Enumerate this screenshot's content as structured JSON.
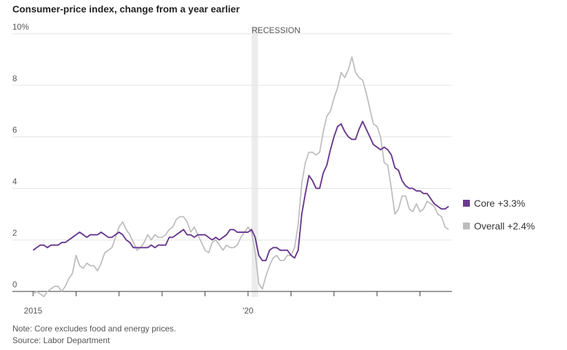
{
  "chart_data": {
    "type": "line",
    "title": "Consumer-price index, change from a year earlier",
    "recession_label": "RECESSION",
    "note": "Note: Core excludes food and energy prices.",
    "source": "Source: Labor Department",
    "categories": [
      "2015",
      null,
      null,
      null,
      null,
      null,
      null,
      null,
      null,
      null,
      null,
      null,
      null,
      null,
      null,
      null,
      null,
      null,
      null,
      null,
      null,
      null,
      null,
      null,
      null,
      null,
      null,
      null,
      null,
      null,
      null,
      null,
      null,
      null,
      null,
      null,
      null,
      null,
      null,
      null,
      null,
      null,
      null,
      null,
      null,
      null,
      null,
      null,
      null,
      null,
      null,
      null,
      null,
      null,
      null,
      null,
      null,
      null,
      null,
      null,
      "'20",
      null,
      null,
      null,
      null,
      null,
      null,
      null,
      null,
      null,
      null,
      null,
      null,
      null,
      null,
      null,
      null,
      null,
      null,
      null,
      null,
      null,
      null,
      null,
      null,
      null,
      null,
      null,
      null,
      null,
      null,
      null,
      null,
      null,
      null,
      null,
      null,
      null,
      null,
      null,
      null,
      null,
      null,
      null,
      null,
      null,
      null,
      null,
      null,
      null,
      null,
      null,
      null,
      null,
      null,
      null,
      null
    ],
    "series": [
      {
        "name": "Core +3.3%",
        "color": "#6b3a8f",
        "values": [
          1.6,
          1.7,
          1.8,
          1.8,
          1.7,
          1.8,
          1.8,
          1.8,
          1.9,
          1.9,
          2.0,
          2.1,
          2.2,
          2.3,
          2.2,
          2.1,
          2.2,
          2.2,
          2.2,
          2.3,
          2.2,
          2.1,
          2.1,
          2.2,
          2.3,
          2.2,
          2.0,
          1.9,
          1.7,
          1.7,
          1.7,
          1.7,
          1.7,
          1.8,
          1.7,
          1.8,
          1.8,
          1.8,
          2.1,
          2.1,
          2.2,
          2.3,
          2.4,
          2.2,
          2.2,
          2.1,
          2.2,
          2.2,
          2.2,
          2.1,
          2.0,
          2.1,
          2.0,
          2.1,
          2.2,
          2.4,
          2.4,
          2.3,
          2.3,
          2.3,
          2.3,
          2.4,
          2.1,
          1.4,
          1.2,
          1.2,
          1.6,
          1.7,
          1.7,
          1.6,
          1.6,
          1.6,
          1.4,
          1.3,
          1.6,
          3.0,
          3.8,
          4.5,
          4.3,
          4.0,
          4.0,
          4.6,
          4.9,
          5.5,
          6.0,
          6.4,
          6.5,
          6.2,
          6.0,
          5.9,
          5.9,
          6.3,
          6.6,
          6.3,
          6.0,
          5.7,
          5.6,
          5.5,
          5.6,
          5.5,
          5.3,
          4.8,
          4.7,
          4.3,
          4.1,
          4.0,
          4.0,
          3.9,
          3.9,
          3.8,
          3.8,
          3.6,
          3.4,
          3.3,
          3.2,
          3.2,
          3.3
        ]
      },
      {
        "name": "Overall +2.4%",
        "color": "#bdbdbd",
        "values": [
          -0.1,
          0.0,
          -0.1,
          -0.2,
          0.0,
          0.1,
          0.2,
          0.2,
          0.0,
          0.2,
          0.5,
          0.7,
          1.4,
          1.0,
          0.9,
          1.1,
          1.0,
          1.0,
          0.8,
          1.1,
          1.5,
          1.6,
          1.7,
          2.1,
          2.5,
          2.7,
          2.4,
          2.2,
          1.9,
          1.6,
          1.7,
          1.9,
          2.2,
          2.0,
          2.2,
          2.1,
          2.1,
          2.2,
          2.4,
          2.5,
          2.8,
          2.9,
          2.9,
          2.7,
          2.3,
          2.5,
          2.2,
          1.9,
          1.6,
          1.5,
          1.9,
          2.0,
          1.8,
          1.6,
          1.8,
          1.7,
          1.7,
          1.8,
          2.1,
          2.3,
          2.5,
          2.3,
          1.5,
          0.3,
          0.1,
          0.6,
          1.0,
          1.3,
          1.4,
          1.2,
          1.2,
          1.4,
          1.4,
          1.7,
          2.6,
          4.2,
          5.0,
          5.4,
          5.4,
          5.3,
          5.4,
          6.2,
          6.8,
          7.0,
          7.5,
          7.9,
          8.5,
          8.3,
          8.6,
          9.1,
          8.5,
          8.3,
          8.2,
          7.7,
          7.1,
          6.5,
          6.4,
          6.0,
          5.0,
          4.9,
          4.0,
          3.0,
          3.2,
          3.7,
          3.7,
          3.2,
          3.1,
          3.4,
          3.1,
          3.2,
          3.5,
          3.4,
          3.3,
          3.0,
          2.9,
          2.5,
          2.4
        ]
      }
    ],
    "ylim": [
      0,
      10
    ],
    "yticks": [
      0,
      2,
      4,
      6,
      8,
      {
        "value": 10,
        "label": "10%"
      }
    ],
    "grid": true
  }
}
